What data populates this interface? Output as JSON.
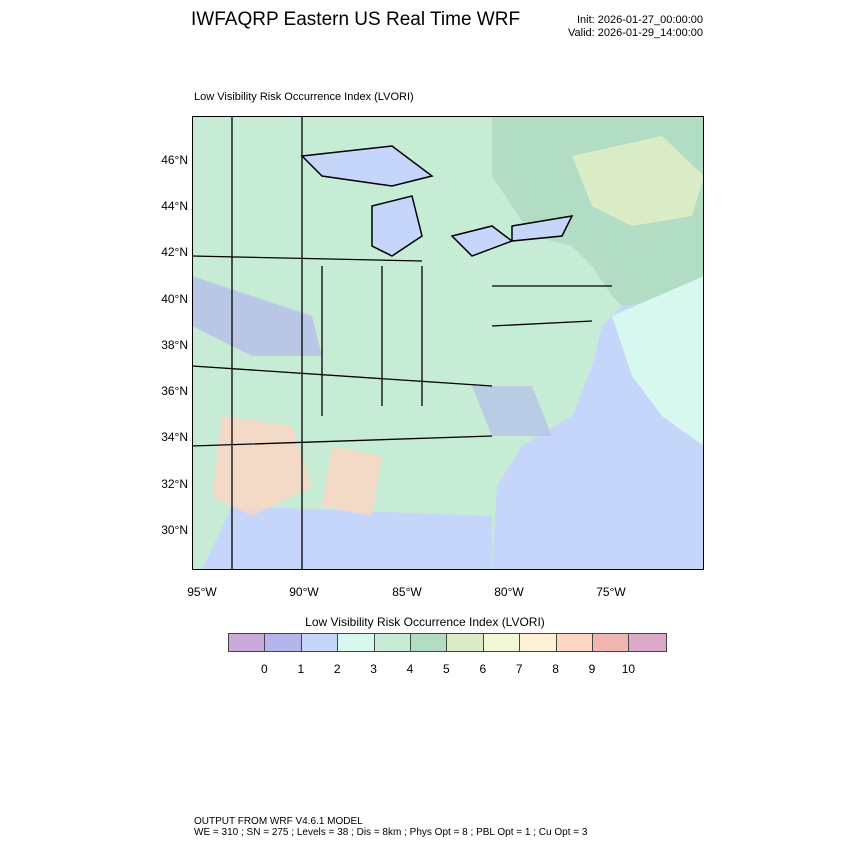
{
  "header": {
    "title": "IWFAQRP Eastern US Real Time WRF",
    "init": "Init: 2026-01-27_00:00:00",
    "valid": "Valid: 2026-01-29_14:00:00"
  },
  "plot": {
    "subtitle": "Low Visibility Risk Occurrence Index   (LVORI)",
    "lat_labels": [
      "46°N",
      "44°N",
      "42°N",
      "40°N",
      "38°N",
      "36°N",
      "34°N",
      "32°N",
      "30°N"
    ],
    "lon_labels": [
      "95°W",
      "90°W",
      "85°W",
      "80°W",
      "75°W"
    ]
  },
  "colorbar": {
    "title": "Low Visibility Risk Occurrence Index  (LVORI)",
    "colors": [
      "#cba9da",
      "#b3b6ec",
      "#c6d6fb",
      "#d7f8ef",
      "#c6ecd6",
      "#b2dcc3",
      "#daecc6",
      "#f1f8d6",
      "#fdf1d6",
      "#fdd6c3",
      "#f0b6b2",
      "#dca9c8"
    ],
    "labels": [
      "0",
      "1",
      "2",
      "3",
      "4",
      "5",
      "6",
      "7",
      "8",
      "9",
      "10"
    ]
  },
  "footer": {
    "line1": "OUTPUT FROM WRF V4.6.1 MODEL",
    "line2": "WE = 310 ; SN = 275 ; Levels = 38 ; Dis = 8km ; Phys Opt = 8 ; PBL Opt = 1 ; Cu Opt = 3"
  }
}
